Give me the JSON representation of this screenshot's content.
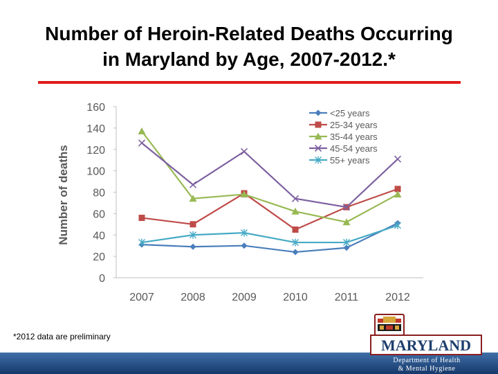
{
  "title_line1": "Number of Heroin-Related Deaths Occurring",
  "title_line2": "in Maryland by Age, 2007-2012.*",
  "footnote": "*2012 data are preliminary",
  "logo": {
    "name": "MARYLAND",
    "dept_line1": "Department of Health",
    "dept_line2": "& Mental Hygiene",
    "seal_text": "MARYLAND"
  },
  "colors": {
    "title_rule": "#e01b1b",
    "band": "#1e4a80"
  },
  "chart_data": {
    "type": "line",
    "title": "",
    "xlabel": "",
    "ylabel": "Number of deaths",
    "x": [
      "2007",
      "2008",
      "2009",
      "2010",
      "2011",
      "2012"
    ],
    "ylim": [
      0,
      160
    ],
    "yticks": [
      0,
      20,
      40,
      60,
      80,
      100,
      120,
      140,
      160
    ],
    "grid": false,
    "legend": "top-right",
    "series": [
      {
        "name": "<25 years",
        "color": "#4a7ebb",
        "marker": "diamond",
        "values": [
          31,
          29,
          30,
          24,
          28,
          51
        ]
      },
      {
        "name": "25-34 years",
        "color": "#be4b48",
        "marker": "square",
        "values": [
          56,
          50,
          79,
          45,
          66,
          83
        ]
      },
      {
        "name": "35-44 years",
        "color": "#98b954",
        "marker": "triangle",
        "values": [
          137,
          74,
          78,
          62,
          52,
          78
        ]
      },
      {
        "name": "45-54 years",
        "color": "#7d60a0",
        "marker": "x",
        "values": [
          126,
          87,
          118,
          74,
          66,
          111
        ]
      },
      {
        "name": "55+ years",
        "color": "#46aac5",
        "marker": "star",
        "values": [
          33,
          40,
          42,
          33,
          33,
          49
        ]
      }
    ]
  }
}
